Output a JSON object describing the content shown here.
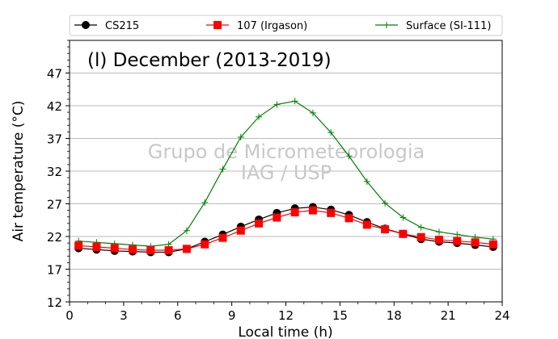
{
  "chart_data": {
    "type": "line",
    "title": "(l) December (2013-2019)",
    "xlabel": "Local time (h)",
    "ylabel": "Air temperature (°C)",
    "xlim": [
      0,
      24
    ],
    "ylim": [
      12,
      52
    ],
    "xticks": [
      0,
      3,
      6,
      9,
      12,
      15,
      18,
      21,
      24
    ],
    "xtick_labels": [
      "0",
      "3",
      "6",
      "9",
      "12",
      "15",
      "18",
      "21",
      "24"
    ],
    "yticks": [
      12,
      17,
      22,
      27,
      32,
      37,
      42,
      47
    ],
    "ytick_labels": [
      "12",
      "17",
      "22",
      "27",
      "32",
      "37",
      "42",
      "47"
    ],
    "grid": "horizontal",
    "legend_position": "top",
    "watermark": [
      "Grupo de Micrometeorologia",
      "IAG / USP"
    ],
    "x": [
      0.5,
      1.5,
      2.5,
      3.5,
      4.5,
      5.5,
      6.5,
      7.5,
      8.5,
      9.5,
      10.5,
      11.5,
      12.5,
      13.5,
      14.5,
      15.5,
      16.5,
      17.5,
      18.5,
      19.5,
      20.5,
      21.5,
      22.5,
      23.5
    ],
    "series": [
      {
        "name": "CS215",
        "color": "#000000",
        "marker": "circle",
        "values": [
          20.2,
          20.0,
          19.8,
          19.7,
          19.6,
          19.6,
          20.1,
          21.2,
          22.3,
          23.5,
          24.6,
          25.6,
          26.3,
          26.5,
          26.1,
          25.3,
          24.2,
          23.2,
          22.4,
          21.6,
          21.2,
          21.0,
          20.7,
          20.4
        ]
      },
      {
        "name": "107 (Irgason)",
        "color": "#ff0000",
        "marker": "square",
        "values": [
          20.6,
          20.4,
          20.2,
          20.0,
          19.9,
          19.9,
          20.1,
          20.8,
          21.8,
          22.9,
          24.0,
          24.9,
          25.7,
          26.0,
          25.6,
          24.8,
          23.8,
          23.1,
          22.4,
          21.9,
          21.5,
          21.3,
          21.1,
          20.8
        ]
      },
      {
        "name": "Surface (SI-111)",
        "color": "#008000",
        "marker": "plus",
        "values": [
          21.3,
          21.1,
          20.9,
          20.7,
          20.5,
          20.8,
          22.9,
          27.2,
          32.3,
          37.2,
          40.3,
          42.2,
          42.7,
          40.9,
          37.9,
          34.3,
          30.4,
          27.1,
          24.9,
          23.4,
          22.7,
          22.3,
          21.9,
          21.6
        ]
      }
    ]
  }
}
